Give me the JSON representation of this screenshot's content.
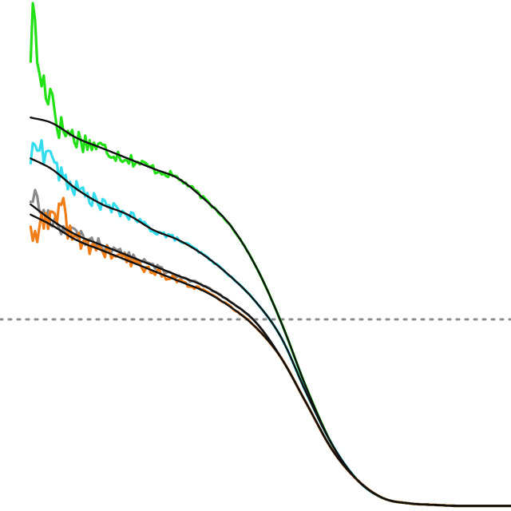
{
  "chart_data": {
    "type": "line",
    "title": "",
    "xlabel": "",
    "ylabel": "",
    "xlim": [
      0,
      1
    ],
    "ylim": [
      0,
      1
    ],
    "grid": false,
    "legend": "none",
    "reference_line": {
      "y": 0.375,
      "style": "dotted",
      "color": "#8c8c8c"
    },
    "fit_color": "#111111",
    "x": [
      0.06,
      0.1,
      0.15,
      0.2,
      0.25,
      0.3,
      0.35,
      0.4,
      0.45,
      0.5,
      0.55,
      0.6,
      0.65,
      0.7,
      0.75,
      0.8,
      0.85,
      0.9,
      0.95,
      1.0
    ],
    "series": [
      {
        "color": "#22e016",
        "values": [
          0.77,
          0.76,
          0.73,
          0.71,
          0.69,
          0.67,
          0.65,
          0.61,
          0.56,
          0.48,
          0.37,
          0.24,
          0.13,
          0.06,
          0.025,
          0.015,
          0.012,
          0.01,
          0.01,
          0.01
        ],
        "noise": 0.035,
        "spikes": [
          [
            0.066,
            0.98
          ],
          [
            0.084,
            0.84
          ],
          [
            0.1,
            0.82
          ]
        ]
      },
      {
        "color": "#33ddee",
        "values": [
          0.69,
          0.67,
          0.63,
          0.6,
          0.58,
          0.55,
          0.53,
          0.5,
          0.46,
          0.41,
          0.34,
          0.23,
          0.13,
          0.06,
          0.025,
          0.015,
          0.012,
          0.01,
          0.01,
          0.01
        ],
        "noise": 0.025,
        "spikes": [
          [
            0.075,
            0.73
          ],
          [
            0.098,
            0.71
          ]
        ]
      },
      {
        "color": "#8a8a8a",
        "values": [
          0.6,
          0.57,
          0.54,
          0.52,
          0.5,
          0.48,
          0.46,
          0.44,
          0.41,
          0.37,
          0.3,
          0.21,
          0.12,
          0.06,
          0.025,
          0.015,
          0.012,
          0.01,
          0.01,
          0.01
        ],
        "noise": 0.02,
        "spikes": [
          [
            0.066,
            0.62
          ]
        ]
      },
      {
        "color": "#f07d18",
        "values": [
          0.58,
          0.56,
          0.53,
          0.51,
          0.49,
          0.47,
          0.45,
          0.43,
          0.4,
          0.36,
          0.3,
          0.21,
          0.12,
          0.06,
          0.025,
          0.015,
          0.012,
          0.01,
          0.01,
          0.01
        ],
        "noise": 0.032,
        "spikes": [
          [
            0.12,
            0.62
          ],
          [
            0.07,
            0.52
          ]
        ]
      }
    ]
  }
}
